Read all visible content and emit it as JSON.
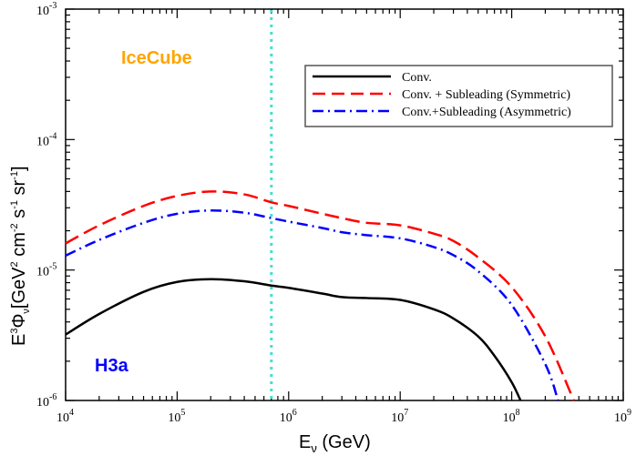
{
  "chart_data": {
    "type": "line",
    "title": "",
    "xlabel": "E_ν (GeV)",
    "xlabel_parts": {
      "base": "E",
      "sub": "ν",
      "rest": " (GeV)"
    },
    "ylabel_parts": {
      "pre": "E",
      "sup3": "3",
      "phi": "Φ",
      "sub": "ν",
      "rest1": "[GeV",
      "sup2": "2",
      "rest2": " cm",
      "sup_m2": "-2",
      "rest3": " s",
      "sup_m1a": "-1",
      "rest4": " sr",
      "sup_m1b": "-1",
      "rest5": "]"
    },
    "xscale": "log",
    "yscale": "log",
    "xlim": [
      10000,
      1000000000
    ],
    "ylim": [
      1e-06,
      0.001
    ],
    "x_ticks": [
      {
        "base": "10",
        "exp": "4"
      },
      {
        "base": "10",
        "exp": "5"
      },
      {
        "base": "10",
        "exp": "6"
      },
      {
        "base": "10",
        "exp": "7"
      },
      {
        "base": "10",
        "exp": "8"
      },
      {
        "base": "10",
        "exp": "9"
      }
    ],
    "y_ticks": [
      {
        "base": "10",
        "exp": "-6"
      },
      {
        "base": "10",
        "exp": "-5"
      },
      {
        "base": "10",
        "exp": "-4"
      },
      {
        "base": "10",
        "exp": "-3"
      }
    ],
    "grid": false,
    "legend_position": "top-right",
    "series": [
      {
        "name": "Conv.",
        "color": "#000000",
        "style": "solid",
        "x": [
          10000.0,
          20000.0,
          50000.0,
          100000.0,
          200000.0,
          400000.0,
          700000.0,
          1000000.0,
          2000000.0,
          3000000.0,
          5000000.0,
          10000000.0,
          20000000.0,
          30000000.0,
          50000000.0,
          70000000.0,
          100000000.0,
          120000000.0
        ],
        "y": [
          3.2e-06,
          4.6e-06,
          6.8e-06,
          8.1e-06,
          8.5e-06,
          8.2e-06,
          7.6e-06,
          7.3e-06,
          6.6e-06,
          6.2e-06,
          6.1e-06,
          5.9e-06,
          5e-06,
          4.25e-06,
          3.1e-06,
          2.2e-06,
          1.38e-06,
          1e-06
        ]
      },
      {
        "name": "Conv. + Subleading (Symmetric)",
        "color": "#ff0000",
        "style": "dashed",
        "x": [
          10000.0,
          20000.0,
          50000.0,
          100000.0,
          200000.0,
          400000.0,
          700000.0,
          1000000.0,
          2000000.0,
          3000000.0,
          5000000.0,
          10000000.0,
          20000000.0,
          30000000.0,
          50000000.0,
          100000000.0,
          200000000.0,
          360000000.0
        ],
        "y": [
          1.6e-05,
          2.2e-05,
          3.1e-05,
          3.7e-05,
          4e-05,
          3.8e-05,
          3.3e-05,
          3.1e-05,
          2.7e-05,
          2.5e-05,
          2.3e-05,
          2.2e-05,
          1.9e-05,
          1.67e-05,
          1.25e-05,
          7.4e-06,
          3.1e-06,
          1e-06
        ]
      },
      {
        "name": "Conv.+Subleading (Asymmetric)",
        "color": "#0000ff",
        "style": "dash-dot",
        "x": [
          10000.0,
          20000.0,
          50000.0,
          100000.0,
          200000.0,
          400000.0,
          700000.0,
          1000000.0,
          2000000.0,
          3000000.0,
          5000000.0,
          10000000.0,
          20000000.0,
          30000000.0,
          50000000.0,
          100000000.0,
          200000000.0,
          260000000.0
        ],
        "y": [
          1.29e-05,
          1.7e-05,
          2.3e-05,
          2.7e-05,
          2.86e-05,
          2.75e-05,
          2.5e-05,
          2.35e-05,
          2.1e-05,
          1.95e-05,
          1.85e-05,
          1.75e-05,
          1.5e-05,
          1.3e-05,
          9.8e-06,
          5.4e-06,
          1.9e-06,
          1e-06
        ]
      }
    ],
    "vertical_line": {
      "x": 700000,
      "color": "#40e0d0",
      "style": "dotted"
    },
    "annotations": [
      {
        "text": "IceCube",
        "color": "#ffa500"
      },
      {
        "text": "H3a",
        "color": "#0000ff"
      }
    ]
  }
}
